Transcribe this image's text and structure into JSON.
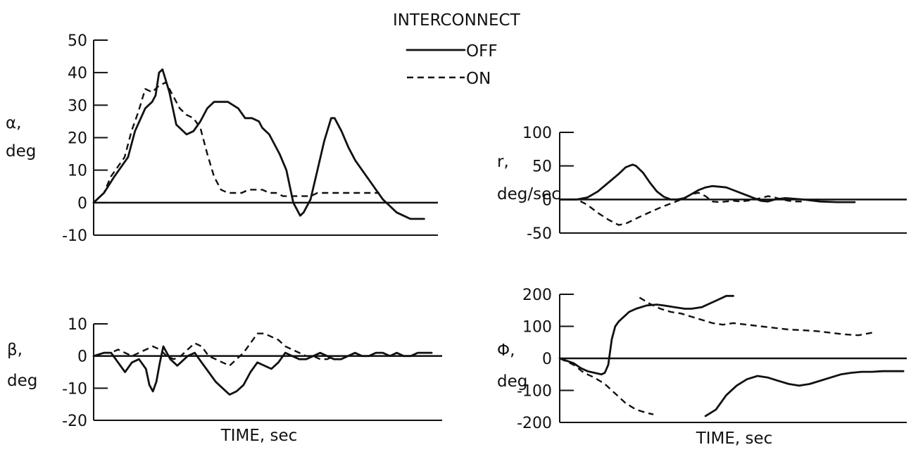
{
  "legend": {
    "title": "INTERCONNECT",
    "off_label": "OFF",
    "on_label": "ON"
  },
  "chart_data": [
    {
      "id": "alpha",
      "type": "line",
      "ylabel": [
        "α,",
        "deg"
      ],
      "xlabel": "",
      "ylim": [
        -10,
        50
      ],
      "yticks": [
        50,
        40,
        30,
        20,
        10,
        0,
        -10
      ],
      "xlim": [
        0,
        100
      ],
      "series": [
        {
          "name": "OFF",
          "style": "solid",
          "x": [
            0,
            3,
            6,
            8,
            10,
            12,
            15,
            17,
            18,
            19,
            20,
            22,
            24,
            27,
            29,
            31,
            33,
            35,
            37,
            39,
            42,
            44,
            46,
            48,
            49,
            51,
            54,
            56,
            58,
            60,
            61,
            63,
            65,
            67,
            69,
            70,
            72,
            74,
            76,
            78,
            80,
            82,
            84,
            86,
            88,
            90,
            92,
            94,
            96
          ],
          "y": [
            0,
            3,
            8,
            11,
            14,
            22,
            29,
            31,
            33,
            40,
            41,
            34,
            24,
            21,
            22,
            25,
            29,
            31,
            31,
            31,
            29,
            26,
            26,
            25,
            23,
            21,
            15,
            10,
            0,
            -4,
            -3,
            1,
            10,
            19,
            26,
            26,
            22,
            17,
            13,
            10,
            7,
            4,
            1,
            -1,
            -3,
            -4,
            -5,
            -5,
            -5
          ]
        },
        {
          "name": "ON",
          "style": "dashed",
          "x": [
            0,
            3,
            5,
            7,
            9,
            11,
            13,
            15,
            17,
            19,
            21,
            23,
            25,
            27,
            29,
            31,
            33,
            35,
            37,
            39,
            41,
            43,
            45,
            47,
            49,
            51,
            53,
            55,
            57,
            59,
            61,
            63,
            65,
            67,
            69,
            71,
            73,
            75,
            77,
            79,
            81,
            83
          ],
          "y": [
            0,
            3,
            8,
            11,
            14,
            22,
            28,
            35,
            34,
            36,
            37,
            33,
            29,
            27,
            26,
            23,
            15,
            8,
            4,
            3,
            3,
            3,
            4,
            4,
            4,
            3,
            3,
            2,
            2,
            2,
            2,
            2,
            3,
            3,
            3,
            3,
            3,
            3,
            3,
            3,
            3,
            3
          ]
        }
      ]
    },
    {
      "id": "r",
      "type": "line",
      "ylabel": [
        "r,",
        "deg/sec"
      ],
      "xlabel": "",
      "ylim": [
        -50,
        100
      ],
      "yticks": [
        100,
        50,
        0,
        -50
      ],
      "xlim": [
        0,
        100
      ],
      "series": [
        {
          "name": "OFF",
          "style": "solid",
          "x": [
            0,
            5,
            8,
            11,
            14,
            17,
            19,
            21,
            22,
            24,
            26,
            28,
            30,
            32,
            34,
            36,
            38,
            40,
            42,
            44,
            46,
            48,
            50,
            52,
            54,
            56,
            58,
            60,
            62,
            65,
            70,
            75,
            80,
            85
          ],
          "y": [
            0,
            0,
            3,
            12,
            25,
            38,
            48,
            52,
            50,
            40,
            25,
            12,
            4,
            0,
            0,
            2,
            8,
            14,
            18,
            20,
            19,
            18,
            14,
            10,
            6,
            2,
            -2,
            -3,
            0,
            2,
            0,
            -3,
            -4,
            -4
          ]
        },
        {
          "name": "ON",
          "style": "dashed",
          "x": [
            0,
            5,
            8,
            11,
            14,
            17,
            19,
            21,
            23,
            26,
            29,
            32,
            35,
            38,
            40,
            42,
            44,
            46,
            48,
            50,
            52,
            54,
            56,
            58,
            60,
            62,
            64,
            66,
            68,
            70
          ],
          "y": [
            0,
            0,
            -8,
            -20,
            -30,
            -38,
            -36,
            -31,
            -26,
            -19,
            -12,
            -6,
            0,
            8,
            10,
            5,
            -3,
            -4,
            -3,
            -2,
            -3,
            -2,
            0,
            2,
            5,
            3,
            0,
            -2,
            -3,
            -3
          ]
        }
      ]
    },
    {
      "id": "beta",
      "type": "line",
      "ylabel": [
        "β,",
        "deg"
      ],
      "xlabel": "TIME, sec",
      "ylim": [
        -20,
        10
      ],
      "yticks": [
        10,
        0,
        -10,
        -20
      ],
      "xlim": [
        0,
        100
      ],
      "series": [
        {
          "name": "OFF",
          "style": "solid",
          "x": [
            0,
            3,
            5,
            7,
            9,
            11,
            13,
            15,
            16,
            17,
            18,
            19,
            20,
            22,
            23,
            24,
            25,
            27,
            29,
            31,
            33,
            35,
            37,
            39,
            41,
            43,
            45,
            47,
            49,
            51,
            53,
            55,
            57,
            59,
            61,
            63,
            65,
            67,
            69,
            71,
            73,
            75,
            77,
            79,
            81,
            83,
            85,
            87,
            89,
            91,
            93,
            95,
            97
          ],
          "y": [
            0,
            1,
            1,
            -2,
            -5,
            -2,
            -1,
            -4,
            -9,
            -11,
            -8,
            -2,
            3,
            -1,
            -2,
            -3,
            -2,
            0,
            1,
            -2,
            -5,
            -8,
            -10,
            -12,
            -11,
            -9,
            -5,
            -2,
            -3,
            -4,
            -2,
            1,
            0,
            -1,
            -1,
            0,
            1,
            0,
            -1,
            -1,
            0,
            1,
            0,
            0,
            1,
            1,
            0,
            1,
            0,
            0,
            1,
            1,
            1
          ]
        },
        {
          "name": "ON",
          "style": "dashed",
          "x": [
            0,
            3,
            5,
            7,
            9,
            11,
            13,
            15,
            17,
            19,
            21,
            23,
            25,
            27,
            29,
            31,
            33,
            35,
            37,
            39,
            41,
            43,
            45,
            47,
            49,
            51,
            53,
            55,
            57,
            59,
            61,
            63,
            65,
            67,
            69,
            71
          ],
          "y": [
            0,
            1,
            1,
            2,
            1,
            0,
            1,
            2,
            3,
            2,
            0,
            -1,
            0,
            2,
            4,
            3,
            0,
            -1,
            -2,
            -3,
            -1,
            1,
            4,
            7,
            7,
            6,
            5,
            3,
            2,
            1,
            0,
            0,
            -1,
            -1,
            0,
            0
          ]
        }
      ]
    },
    {
      "id": "phi",
      "type": "line",
      "ylabel": [
        "Φ,",
        "deg"
      ],
      "xlabel": "TIME, sec",
      "ylim": [
        -200,
        200
      ],
      "yticks": [
        200,
        100,
        0,
        -100,
        -200
      ],
      "xlim": [
        0,
        100
      ],
      "series": [
        {
          "name": "OFF",
          "style": "solid",
          "x": [
            0,
            4,
            6,
            8,
            10,
            12,
            13,
            14,
            15,
            16,
            17,
            18,
            19,
            20,
            22,
            25,
            28,
            30,
            33,
            36,
            38,
            41,
            43,
            45,
            48,
            50
          ],
          "y": [
            0,
            -15,
            -30,
            -40,
            -45,
            -50,
            -45,
            -20,
            60,
            100,
            115,
            125,
            135,
            145,
            155,
            165,
            168,
            165,
            160,
            155,
            155,
            160,
            170,
            180,
            195,
            195
          ]
        },
        {
          "name": "OFF",
          "style": "solid",
          "x": [
            42,
            45,
            48,
            51,
            54,
            57,
            60,
            63,
            66,
            69,
            72,
            75,
            78,
            81,
            84,
            87,
            90,
            93,
            96,
            99
          ],
          "y": [
            -180,
            -160,
            -115,
            -85,
            -65,
            -55,
            -60,
            -70,
            -80,
            -85,
            -80,
            -70,
            -60,
            -50,
            -45,
            -42,
            -42,
            -40,
            -40,
            -40
          ]
        },
        {
          "name": "ON",
          "style": "dashed",
          "x": [
            0,
            4,
            7,
            10,
            13,
            16,
            19,
            22,
            25,
            27
          ],
          "y": [
            0,
            -20,
            -45,
            -60,
            -80,
            -110,
            -140,
            -160,
            -170,
            -175
          ]
        },
        {
          "name": "ON",
          "style": "dashed",
          "x": [
            23,
            26,
            29,
            32,
            35,
            38,
            41,
            44,
            47,
            50,
            54,
            58,
            62,
            66,
            70,
            74,
            78,
            82,
            86,
            90
          ],
          "y": [
            190,
            170,
            155,
            145,
            140,
            130,
            120,
            110,
            105,
            110,
            105,
            100,
            95,
            90,
            88,
            85,
            80,
            75,
            72,
            80
          ]
        }
      ]
    }
  ]
}
